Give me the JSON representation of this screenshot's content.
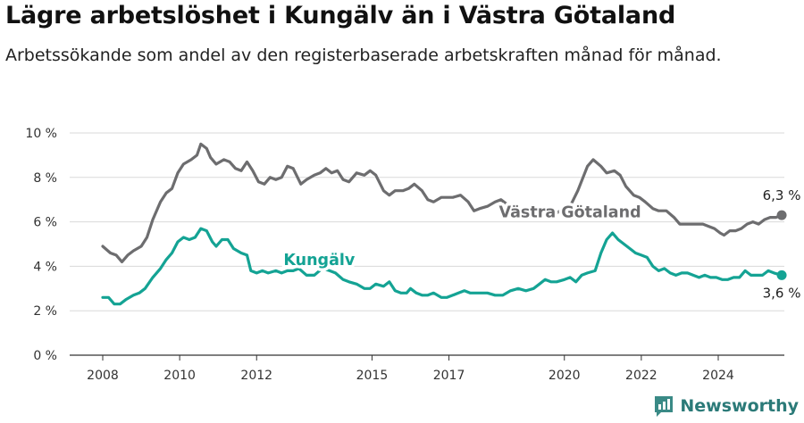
{
  "title": "Lägre arbetslöshet i Kungälv än i Västra Götaland",
  "subtitle": "Arbetssökande som andel av den registerbaserade arbetskraften månad för månad.",
  "brand": {
    "name": "Newsworthy",
    "color": "#3a8a86"
  },
  "chart_data": {
    "type": "line",
    "title": "Lägre arbetslöshet i Kungälv än i Västra Götaland",
    "subtitle": "Arbetssökande som andel av den registerbaserade arbetskraften månad för månad.",
    "ylim": [
      0,
      10
    ],
    "xlim": [
      2007.5,
      2025.7
    ],
    "grid": true,
    "y_ticks": [
      0,
      2,
      4,
      6,
      8,
      10
    ],
    "y_tick_labels": [
      "0 %",
      "2 %",
      "4 %",
      "6 %",
      "8 %",
      "10 %"
    ],
    "x_ticks": [
      2008,
      2010,
      2012,
      2015,
      2017,
      2020,
      2022,
      2024
    ],
    "x_tick_labels": [
      "2008",
      "2010",
      "2012",
      "2015",
      "2017",
      "2020",
      "2022",
      "2024"
    ],
    "series": [
      {
        "name": "Västra Götaland",
        "color": "#6d6d6f",
        "end_label": "6,3 %",
        "points": [
          [
            2008.0,
            4.9
          ],
          [
            2008.2,
            4.6
          ],
          [
            2008.35,
            4.5
          ],
          [
            2008.5,
            4.2
          ],
          [
            2008.65,
            4.5
          ],
          [
            2008.8,
            4.7
          ],
          [
            2009.0,
            4.9
          ],
          [
            2009.15,
            5.3
          ],
          [
            2009.3,
            6.1
          ],
          [
            2009.5,
            6.9
          ],
          [
            2009.65,
            7.3
          ],
          [
            2009.8,
            7.5
          ],
          [
            2009.95,
            8.2
          ],
          [
            2010.1,
            8.6
          ],
          [
            2010.3,
            8.8
          ],
          [
            2010.45,
            9.0
          ],
          [
            2010.55,
            9.5
          ],
          [
            2010.7,
            9.3
          ],
          [
            2010.8,
            8.9
          ],
          [
            2010.95,
            8.6
          ],
          [
            2011.15,
            8.8
          ],
          [
            2011.3,
            8.7
          ],
          [
            2011.45,
            8.4
          ],
          [
            2011.6,
            8.3
          ],
          [
            2011.75,
            8.7
          ],
          [
            2011.9,
            8.3
          ],
          [
            2012.05,
            7.8
          ],
          [
            2012.2,
            7.7
          ],
          [
            2012.35,
            8.0
          ],
          [
            2012.5,
            7.9
          ],
          [
            2012.65,
            8.0
          ],
          [
            2012.8,
            8.5
          ],
          [
            2012.95,
            8.4
          ],
          [
            2013.15,
            7.7
          ],
          [
            2013.3,
            7.9
          ],
          [
            2013.5,
            8.1
          ],
          [
            2013.65,
            8.2
          ],
          [
            2013.8,
            8.4
          ],
          [
            2013.95,
            8.2
          ],
          [
            2014.1,
            8.3
          ],
          [
            2014.25,
            7.9
          ],
          [
            2014.4,
            7.8
          ],
          [
            2014.6,
            8.2
          ],
          [
            2014.8,
            8.1
          ],
          [
            2014.95,
            8.3
          ],
          [
            2015.1,
            8.1
          ],
          [
            2015.3,
            7.4
          ],
          [
            2015.45,
            7.2
          ],
          [
            2015.6,
            7.4
          ],
          [
            2015.8,
            7.4
          ],
          [
            2015.95,
            7.5
          ],
          [
            2016.1,
            7.7
          ],
          [
            2016.3,
            7.4
          ],
          [
            2016.45,
            7.0
          ],
          [
            2016.6,
            6.9
          ],
          [
            2016.8,
            7.1
          ],
          [
            2016.95,
            7.1
          ],
          [
            2017.1,
            7.1
          ],
          [
            2017.3,
            7.2
          ],
          [
            2017.5,
            6.9
          ],
          [
            2017.65,
            6.5
          ],
          [
            2017.8,
            6.6
          ],
          [
            2018.0,
            6.7
          ],
          [
            2018.2,
            6.9
          ],
          [
            2018.35,
            7.0
          ],
          [
            2018.5,
            6.8
          ],
          [
            2018.65,
            6.7
          ],
          [
            2018.8,
            6.4
          ],
          [
            2019.0,
            6.6
          ],
          [
            2019.2,
            6.4
          ],
          [
            2019.4,
            6.3
          ],
          [
            2019.6,
            6.4
          ],
          [
            2019.8,
            6.4
          ],
          [
            2020.0,
            6.6
          ],
          [
            2020.15,
            6.7
          ],
          [
            2020.35,
            7.4
          ],
          [
            2020.6,
            8.5
          ],
          [
            2020.75,
            8.8
          ],
          [
            2020.95,
            8.5
          ],
          [
            2021.1,
            8.2
          ],
          [
            2021.3,
            8.3
          ],
          [
            2021.45,
            8.1
          ],
          [
            2021.6,
            7.6
          ],
          [
            2021.8,
            7.2
          ],
          [
            2021.95,
            7.1
          ],
          [
            2022.1,
            6.9
          ],
          [
            2022.3,
            6.6
          ],
          [
            2022.45,
            6.5
          ],
          [
            2022.65,
            6.5
          ],
          [
            2022.85,
            6.2
          ],
          [
            2023.0,
            5.9
          ],
          [
            2023.2,
            5.9
          ],
          [
            2023.4,
            5.9
          ],
          [
            2023.6,
            5.9
          ],
          [
            2023.75,
            5.8
          ],
          [
            2023.9,
            5.7
          ],
          [
            2024.05,
            5.5
          ],
          [
            2024.15,
            5.4
          ],
          [
            2024.3,
            5.6
          ],
          [
            2024.45,
            5.6
          ],
          [
            2024.6,
            5.7
          ],
          [
            2024.75,
            5.9
          ],
          [
            2024.9,
            6.0
          ],
          [
            2025.05,
            5.9
          ],
          [
            2025.2,
            6.1
          ],
          [
            2025.35,
            6.2
          ],
          [
            2025.5,
            6.2
          ],
          [
            2025.65,
            6.3
          ]
        ]
      },
      {
        "name": "Kungälv",
        "color": "#14a394",
        "end_label": "3,6 %",
        "points": [
          [
            2008.0,
            2.6
          ],
          [
            2008.15,
            2.6
          ],
          [
            2008.3,
            2.3
          ],
          [
            2008.45,
            2.3
          ],
          [
            2008.6,
            2.5
          ],
          [
            2008.8,
            2.7
          ],
          [
            2008.95,
            2.8
          ],
          [
            2009.1,
            3.0
          ],
          [
            2009.3,
            3.5
          ],
          [
            2009.5,
            3.9
          ],
          [
            2009.65,
            4.3
          ],
          [
            2009.8,
            4.6
          ],
          [
            2009.95,
            5.1
          ],
          [
            2010.1,
            5.3
          ],
          [
            2010.25,
            5.2
          ],
          [
            2010.4,
            5.3
          ],
          [
            2010.55,
            5.7
          ],
          [
            2010.7,
            5.6
          ],
          [
            2010.85,
            5.1
          ],
          [
            2010.95,
            4.9
          ],
          [
            2011.1,
            5.2
          ],
          [
            2011.25,
            5.2
          ],
          [
            2011.4,
            4.8
          ],
          [
            2011.6,
            4.6
          ],
          [
            2011.75,
            4.5
          ],
          [
            2011.85,
            3.8
          ],
          [
            2012.0,
            3.7
          ],
          [
            2012.15,
            3.8
          ],
          [
            2012.3,
            3.7
          ],
          [
            2012.5,
            3.8
          ],
          [
            2012.65,
            3.7
          ],
          [
            2012.8,
            3.8
          ],
          [
            2012.95,
            3.8
          ],
          [
            2013.1,
            3.9
          ],
          [
            2013.3,
            3.6
          ],
          [
            2013.5,
            3.6
          ],
          [
            2013.7,
            3.9
          ],
          [
            2013.9,
            3.8
          ],
          [
            2014.05,
            3.7
          ],
          [
            2014.25,
            3.4
          ],
          [
            2014.4,
            3.3
          ],
          [
            2014.6,
            3.2
          ],
          [
            2014.8,
            3.0
          ],
          [
            2014.95,
            3.0
          ],
          [
            2015.1,
            3.2
          ],
          [
            2015.3,
            3.1
          ],
          [
            2015.45,
            3.3
          ],
          [
            2015.6,
            2.9
          ],
          [
            2015.75,
            2.8
          ],
          [
            2015.9,
            2.8
          ],
          [
            2016.0,
            3.0
          ],
          [
            2016.15,
            2.8
          ],
          [
            2016.3,
            2.7
          ],
          [
            2016.45,
            2.7
          ],
          [
            2016.6,
            2.8
          ],
          [
            2016.8,
            2.6
          ],
          [
            2016.95,
            2.6
          ],
          [
            2017.1,
            2.7
          ],
          [
            2017.25,
            2.8
          ],
          [
            2017.4,
            2.9
          ],
          [
            2017.55,
            2.8
          ],
          [
            2017.8,
            2.8
          ],
          [
            2018.0,
            2.8
          ],
          [
            2018.2,
            2.7
          ],
          [
            2018.4,
            2.7
          ],
          [
            2018.6,
            2.9
          ],
          [
            2018.8,
            3.0
          ],
          [
            2019.0,
            2.9
          ],
          [
            2019.2,
            3.0
          ],
          [
            2019.35,
            3.2
          ],
          [
            2019.5,
            3.4
          ],
          [
            2019.65,
            3.3
          ],
          [
            2019.8,
            3.3
          ],
          [
            2020.0,
            3.4
          ],
          [
            2020.15,
            3.5
          ],
          [
            2020.3,
            3.3
          ],
          [
            2020.45,
            3.6
          ],
          [
            2020.6,
            3.7
          ],
          [
            2020.8,
            3.8
          ],
          [
            2020.95,
            4.6
          ],
          [
            2021.1,
            5.2
          ],
          [
            2021.25,
            5.5
          ],
          [
            2021.4,
            5.2
          ],
          [
            2021.55,
            5.0
          ],
          [
            2021.7,
            4.8
          ],
          [
            2021.85,
            4.6
          ],
          [
            2022.0,
            4.5
          ],
          [
            2022.15,
            4.4
          ],
          [
            2022.3,
            4.0
          ],
          [
            2022.45,
            3.8
          ],
          [
            2022.6,
            3.9
          ],
          [
            2022.75,
            3.7
          ],
          [
            2022.9,
            3.6
          ],
          [
            2023.05,
            3.7
          ],
          [
            2023.2,
            3.7
          ],
          [
            2023.35,
            3.6
          ],
          [
            2023.5,
            3.5
          ],
          [
            2023.65,
            3.6
          ],
          [
            2023.8,
            3.5
          ],
          [
            2023.95,
            3.5
          ],
          [
            2024.1,
            3.4
          ],
          [
            2024.25,
            3.4
          ],
          [
            2024.4,
            3.5
          ],
          [
            2024.55,
            3.5
          ],
          [
            2024.7,
            3.8
          ],
          [
            2024.85,
            3.6
          ],
          [
            2025.0,
            3.6
          ],
          [
            2025.15,
            3.6
          ],
          [
            2025.3,
            3.8
          ],
          [
            2025.45,
            3.7
          ],
          [
            2025.65,
            3.6
          ]
        ]
      }
    ],
    "series_labels": [
      {
        "series": "Västra Götaland",
        "x": 2018.3,
        "y": 6.2
      },
      {
        "series": "Kungälv",
        "x": 2012.7,
        "y": 4.05
      }
    ]
  }
}
